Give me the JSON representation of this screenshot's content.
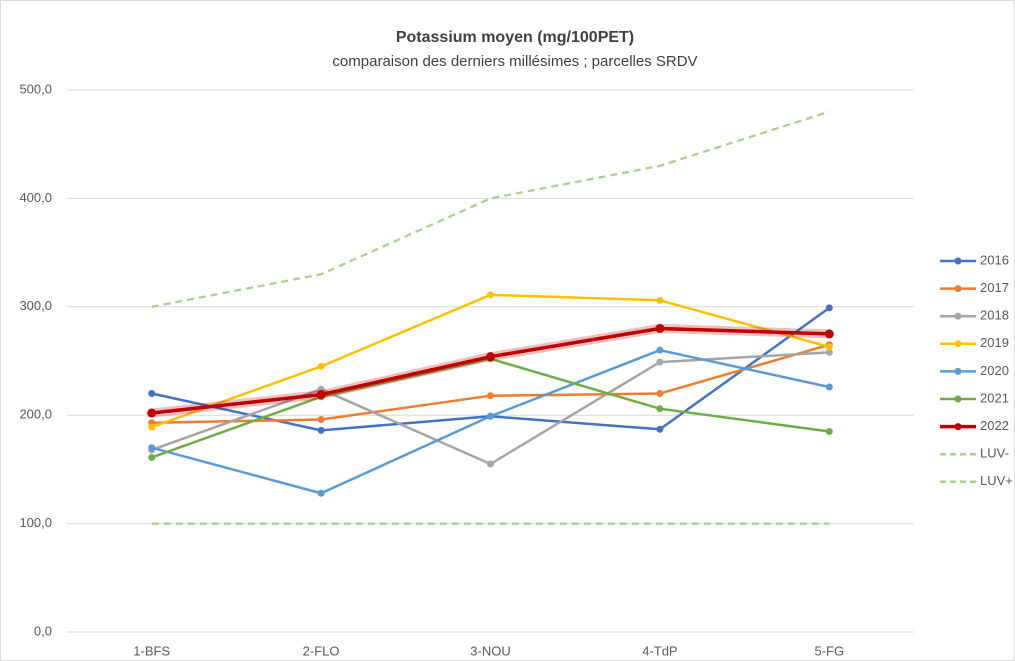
{
  "chart_data": {
    "type": "line",
    "title": "Potassium moyen (mg/100PET)",
    "subtitle": "comparaison des derniers millésimes ; parcelles SRDV",
    "categories": [
      "1-BFS",
      "2-FLO",
      "3-NOU",
      "4-TdP",
      "5-FG"
    ],
    "ylim": [
      0,
      500
    ],
    "yticks": [
      {
        "value": 0,
        "label": "0,0"
      },
      {
        "value": 100,
        "label": "100,0"
      },
      {
        "value": 200,
        "label": "200,0"
      },
      {
        "value": 300,
        "label": "300,0"
      },
      {
        "value": 400,
        "label": "400,0"
      },
      {
        "value": 500,
        "label": "500,0"
      }
    ],
    "grid": true,
    "legend": "right",
    "series": [
      {
        "name": "2016",
        "color": "#4472c4",
        "values": [
          220,
          186,
          199,
          187,
          299
        ]
      },
      {
        "name": "2017",
        "color": "#ed7d31",
        "values": [
          193,
          196,
          218,
          220,
          265
        ]
      },
      {
        "name": "2018",
        "color": "#a5a5a5",
        "values": [
          168,
          224,
          155,
          249,
          258
        ]
      },
      {
        "name": "2019",
        "color": "#ffc000",
        "values": [
          189,
          245,
          311,
          306,
          263
        ]
      },
      {
        "name": "2020",
        "color": "#5b9bd5",
        "values": [
          170,
          128,
          199,
          260,
          226
        ]
      },
      {
        "name": "2021",
        "color": "#70ad47",
        "values": [
          161,
          217,
          252,
          206,
          185
        ]
      },
      {
        "name": "2022",
        "color": "#c00000",
        "values": [
          202,
          219,
          254,
          280,
          275
        ],
        "highlight": true
      },
      {
        "name": "LUV-",
        "color": "#a9d18e",
        "values": [
          100,
          100,
          100,
          100,
          100
        ],
        "dashed": true
      },
      {
        "name": "LUV+",
        "color": "#a9d18e",
        "values": [
          300,
          330,
          400,
          430,
          480
        ],
        "dashed": true
      }
    ]
  }
}
